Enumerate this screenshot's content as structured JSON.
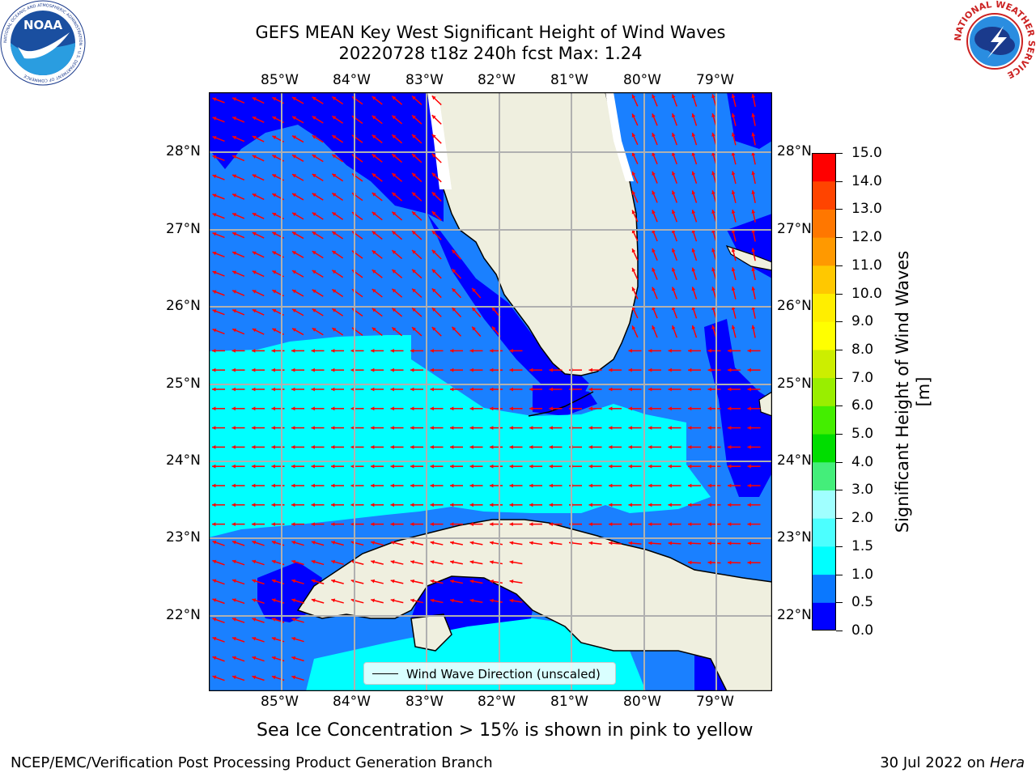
{
  "title": {
    "line1": "GEFS MEAN Key West Significant Height of Wind Waves",
    "line2": "20220728 t18z 240h fcst   Max: 1.24"
  },
  "logos": {
    "left": {
      "icon": "noaa-logo",
      "text": "NOAA",
      "ring_text": "NATIONAL OCEANIC AND ATMOSPHERIC ADMINISTRATION • U.S. DEPARTMENT OF COMMERCE"
    },
    "right": {
      "icon": "nws-logo",
      "ring_text": "NATIONAL WEATHER SERVICE"
    }
  },
  "axes": {
    "lon_ticks": [
      "85°W",
      "84°W",
      "83°W",
      "82°W",
      "81°W",
      "80°W",
      "79°W"
    ],
    "lat_ticks": [
      "28°N",
      "27°N",
      "26°N",
      "25°N",
      "24°N",
      "23°N",
      "22°N"
    ]
  },
  "colorbar": {
    "label": "Significant Height of Wind Waves [m]",
    "ticks": [
      "0.0",
      "0.5",
      "1.0",
      "1.5",
      "2.0",
      "3.0",
      "4.0",
      "5.0",
      "6.0",
      "7.0",
      "8.0",
      "9.0",
      "10.0",
      "11.0",
      "12.0",
      "13.0",
      "14.0",
      "15.0"
    ],
    "colors": [
      "#0000ff",
      "#0a78ff",
      "#00ffff",
      "#4cffff",
      "#a0ffff",
      "#44ee7a",
      "#00dd00",
      "#44ee00",
      "#99ee00",
      "#ccee00",
      "#ffff00",
      "#ffee00",
      "#ffc800",
      "#ff9900",
      "#ff7700",
      "#ff4400",
      "#ff0000"
    ]
  },
  "legend": {
    "label": "Wind Wave Direction (unscaled)"
  },
  "map": {
    "land_color": "#efefdf",
    "grid_color": "#b0b0b0",
    "arrow_color": "#ff0000",
    "deep_blue": "#0000ff",
    "mid_blue": "#1a80ff",
    "cyan": "#00ffff"
  },
  "notes": {
    "sea_ice": "Sea Ice Concentration > 15% is shown in pink to yellow"
  },
  "footer": {
    "left": "NCEP/EMC/Verification Post Processing Product Generation Branch",
    "date": "30 Jul 2022 on ",
    "host": "Hera"
  }
}
